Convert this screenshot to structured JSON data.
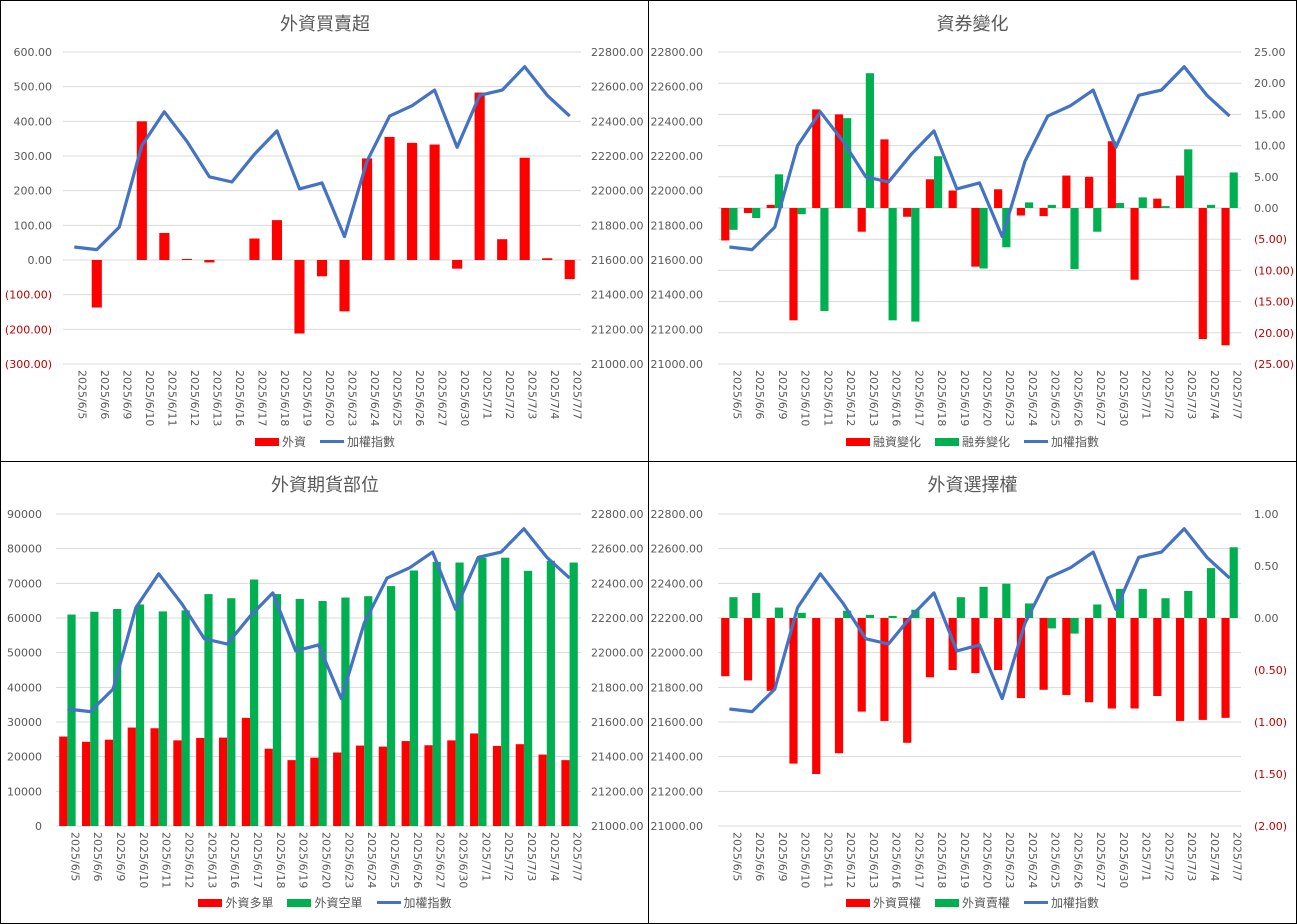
{
  "colors": {
    "red": "#FF0000",
    "green": "#00B050",
    "blue": "#4472C4",
    "grid": "#D9D9D9",
    "axis_text": "#595959",
    "negative_text": "#C00000"
  },
  "dates": [
    "2025/6/5",
    "2025/6/6",
    "2025/6/9",
    "2025/6/10",
    "2025/6/11",
    "2025/6/12",
    "2025/6/13",
    "2025/6/16",
    "2025/6/17",
    "2025/6/18",
    "2025/6/19",
    "2025/6/20",
    "2025/6/23",
    "2025/6/24",
    "2025/6/25",
    "2025/6/26",
    "2025/6/27",
    "2025/6/30",
    "2025/7/1",
    "2025/7/2",
    "2025/7/3",
    "2025/7/4",
    "2025/7/7"
  ],
  "index_values": [
    21675,
    21660,
    21790,
    22260,
    22455,
    22285,
    22080,
    22050,
    22210,
    22345,
    22010,
    22045,
    21735,
    22170,
    22430,
    22490,
    22580,
    22250,
    22550,
    22580,
    22715,
    22550,
    22430
  ],
  "chart_data": [
    {
      "type": "bar",
      "title": "外資買賣超",
      "left_ticks": [
        "600.00",
        "500.00",
        "400.00",
        "300.00",
        "200.00",
        "100.00",
        "0.00",
        "(100.00)",
        "(200.00)",
        "(300.00)"
      ],
      "right_ticks": [
        "22800.00",
        "22600.00",
        "22400.00",
        "22200.00",
        "22000.00",
        "21800.00",
        "21600.00",
        "21400.00",
        "21200.00",
        "21000.00"
      ],
      "ylim_left": [
        -300,
        600
      ],
      "ylim_right": [
        21000,
        22800
      ],
      "series": [
        {
          "name": "外資",
          "color": "#FF0000",
          "values": [
            0,
            -137,
            0,
            400,
            78,
            3,
            -7,
            0,
            62,
            115,
            -212,
            -47,
            -148,
            293,
            355,
            338,
            333,
            -25,
            483,
            60,
            295,
            5,
            -55
          ]
        }
      ],
      "line_name": "加權指數"
    },
    {
      "type": "bar",
      "title": "資券變化",
      "left_ticks": [
        "22800.00",
        "22600.00",
        "22400.00",
        "22200.00",
        "22000.00",
        "21800.00",
        "21600.00",
        "21400.00",
        "21200.00",
        "21000.00"
      ],
      "right_ticks": [
        "25.00",
        "20.00",
        "15.00",
        "10.00",
        "5.00",
        "0.00",
        "(5.00)",
        "(10.00)",
        "(15.00)",
        "(20.00)",
        "(25.00)"
      ],
      "ylim_left": [
        21000,
        22800
      ],
      "ylim_right": [
        -25,
        25
      ],
      "series": [
        {
          "name": "融資變化",
          "color": "#FF0000",
          "values": [
            -5.2,
            -0.8,
            0.5,
            -18,
            15.8,
            15,
            -3.8,
            11,
            -1.4,
            4.6,
            2.8,
            -9.4,
            3,
            -1.2,
            -1.3,
            5.2,
            5,
            10.7,
            -11.5,
            1.5,
            5.2,
            -21,
            -22
          ]
        },
        {
          "name": "融券變化",
          "color": "#00B050",
          "values": [
            -3.5,
            -1.6,
            5.4,
            -1,
            -16.5,
            14.4,
            21.6,
            -18,
            -18.2,
            8.3,
            0,
            -9.7,
            -6.3,
            0.9,
            0.5,
            -9.8,
            -3.8,
            0.8,
            1.7,
            0.3,
            9.4,
            0.5,
            5.7
          ]
        }
      ],
      "line_name": "加權指數"
    },
    {
      "type": "bar",
      "title": "外資期貨部位",
      "left_ticks": [
        "90000",
        "80000",
        "70000",
        "60000",
        "50000",
        "40000",
        "30000",
        "20000",
        "10000",
        "0"
      ],
      "right_ticks": [
        "22800.00",
        "22600.00",
        "22400.00",
        "22200.00",
        "22000.00",
        "21800.00",
        "21600.00",
        "21400.00",
        "21200.00",
        "21000.00"
      ],
      "ylim_left": [
        0,
        90000
      ],
      "ylim_right": [
        21000,
        22800
      ],
      "series": [
        {
          "name": "外資多單",
          "color": "#FF0000",
          "values": [
            25800,
            24300,
            24900,
            28400,
            28200,
            24700,
            25400,
            25500,
            31200,
            22300,
            19000,
            19700,
            21200,
            23200,
            22900,
            24500,
            23300,
            24700,
            26700,
            23100,
            23600,
            20600,
            19000
          ]
        },
        {
          "name": "外資空單",
          "color": "#00B050",
          "values": [
            61000,
            61800,
            62600,
            63900,
            61900,
            62200,
            66900,
            65700,
            71100,
            66900,
            65500,
            64900,
            65900,
            66300,
            69200,
            73700,
            76200,
            76000,
            77400,
            77400,
            73600,
            76500,
            76000
          ]
        }
      ],
      "line_name": "加權指數"
    },
    {
      "type": "bar",
      "title": "外資選擇權",
      "left_ticks": [
        "22800.00",
        "22600.00",
        "22400.00",
        "22200.00",
        "22000.00",
        "21800.00",
        "21600.00",
        "21400.00",
        "21200.00",
        "21000.00"
      ],
      "right_ticks": [
        "1.00",
        "0.50",
        "0.00",
        "(0.50)",
        "(1.00)",
        "(1.50)",
        "(2.00)"
      ],
      "ylim_left": [
        21000,
        22800
      ],
      "ylim_right": [
        -2,
        1
      ],
      "series": [
        {
          "name": "外資買權",
          "color": "#FF0000",
          "values": [
            -0.56,
            -0.6,
            -0.7,
            -1.4,
            -1.5,
            -1.3,
            -0.9,
            -0.99,
            -1.2,
            -0.57,
            -0.5,
            -0.53,
            -0.5,
            -0.77,
            -0.69,
            -0.74,
            -0.81,
            -0.87,
            -0.87,
            -0.75,
            -0.99,
            -0.98,
            -0.96
          ]
        },
        {
          "name": "外資賣權",
          "color": "#00B050",
          "values": [
            0.2,
            0.24,
            0.1,
            0.05,
            0,
            0.07,
            0.03,
            0.02,
            0.08,
            0,
            0.2,
            0.3,
            0.33,
            0.14,
            -0.1,
            -0.15,
            0.13,
            0.28,
            0.28,
            0.19,
            0.26,
            0.48,
            0.68
          ]
        }
      ],
      "line_name": "加權指數"
    }
  ]
}
